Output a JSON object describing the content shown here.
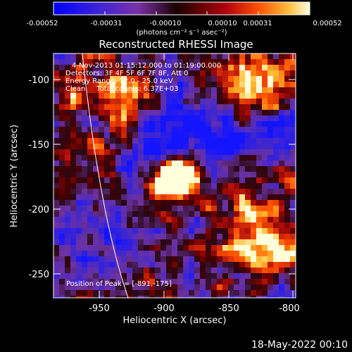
{
  "colorbar": {
    "tick_labels": [
      "-0.00052",
      "-0.00031",
      "-0.00010",
      "0.00010",
      "0.00031",
      "0.00052"
    ],
    "unit_label": "(photons cm⁻² s⁻¹ asec⁻²)"
  },
  "plot": {
    "title": "Reconstructed RHESSI Image",
    "xlabel": "Heliocentric X (arcsec)",
    "ylabel": "Heliocentric Y (arcsec)",
    "x_ticks": [
      "-950",
      "-900",
      "-850",
      "-800"
    ],
    "y_ticks": [
      "-100",
      "-150",
      "-200",
      "-250"
    ],
    "x_range": [
      -985,
      -795
    ],
    "y_range": [
      -270,
      -85
    ]
  },
  "annotations": {
    "time_range": "4-Nov-2013 01:15:12.000 to 01:19:00.000",
    "detectors": "Detectors: 3F 4F 5F 6F 7F 8F, Att 0",
    "energy_range": "Energy Range: 12.0 - 25.0 keV",
    "clean_counts": "Clean     Total counts: 6.37E+03",
    "peak_position": "Position of Peak = [-891,-175]"
  },
  "footer": {
    "date_stamp": "18-May-2022 00:10"
  },
  "colors": {
    "background": "#000000",
    "text": "#ffffff",
    "limb_line": "#ffffff"
  }
}
